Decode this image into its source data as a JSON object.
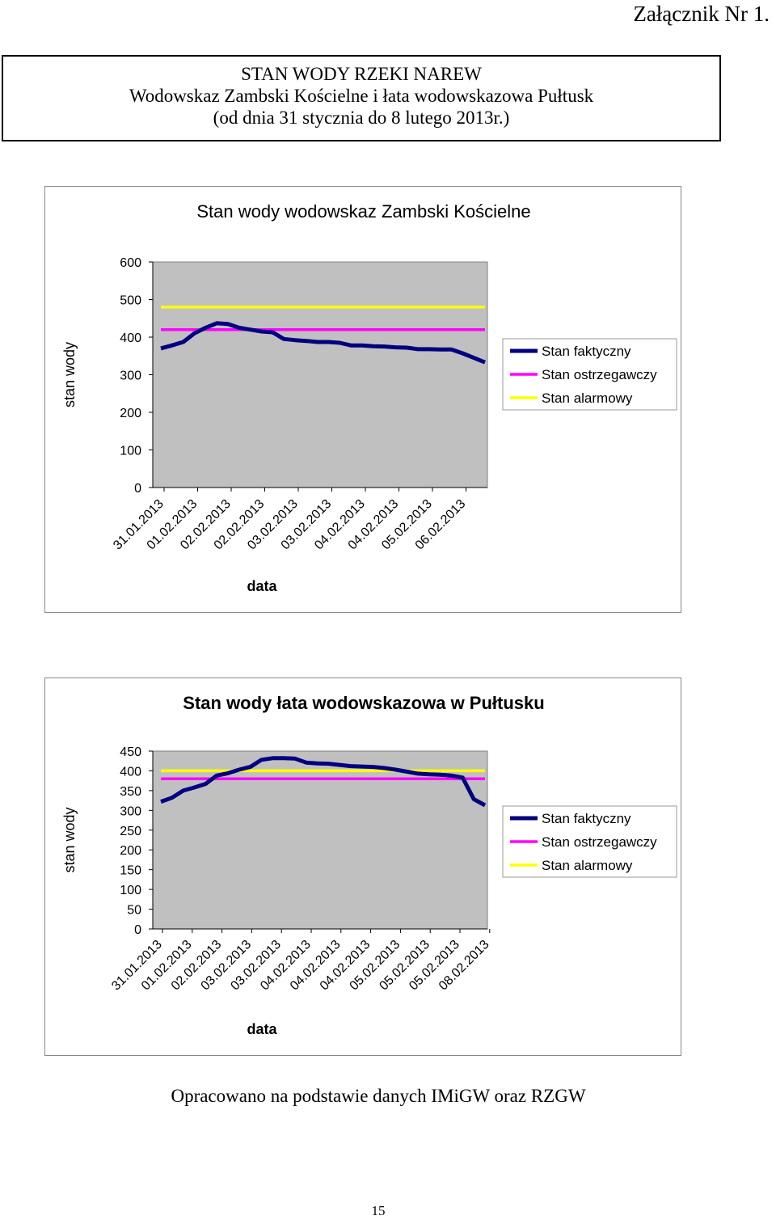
{
  "annex": "Załącznik Nr 1.",
  "header": {
    "line1": "STAN WODY RZEKI NAREW",
    "line2": "Wodowskaz Zambski Kościelne i łata wodowskazowa Pułtusk",
    "line3": "(od dnia 31 stycznia do 8 lutego 2013r.)"
  },
  "footer_note": "Opracowano na podstawie danych IMiGW oraz RZGW",
  "page_number": "15",
  "colors": {
    "plot_bg": "#c0c0c0",
    "faktyczny": "#000080",
    "ostrzegawczy": "#ff00ff",
    "alarmowy": "#ffff00"
  },
  "chart_data": [
    {
      "type": "line",
      "title": "Stan wody wodowskaz Zambski Kościelne",
      "xlabel": "data",
      "ylabel": "stan wody",
      "ylim": [
        0,
        600
      ],
      "yticks": [
        "0",
        "100",
        "200",
        "300",
        "400",
        "500",
        "600"
      ],
      "xticks": [
        "31.01.2013",
        "01.02.2013",
        "02.02.2013",
        "02.02.2013",
        "03.02.2013",
        "03.02.2013",
        "04.02.2013",
        "04.02.2013",
        "05.02.2013",
        "06.02.2013"
      ],
      "grid": false,
      "legend_position": "right",
      "series": [
        {
          "name": "Stan faktyczny",
          "values": [
            370,
            378,
            387,
            410,
            425,
            437,
            435,
            425,
            420,
            415,
            413,
            395,
            392,
            390,
            387,
            387,
            385,
            378,
            378,
            376,
            375,
            373,
            372,
            368,
            368,
            367,
            367,
            357,
            345,
            333
          ]
        },
        {
          "name": "Stan ostrzegawczy",
          "values": [
            420,
            420
          ]
        },
        {
          "name": "Stan alarmowy",
          "values": [
            480,
            480
          ]
        }
      ]
    },
    {
      "type": "line",
      "title": "Stan wody łata wodowskazowa w Pułtusku",
      "xlabel": "data",
      "ylabel": "stan wody",
      "ylim": [
        0,
        450
      ],
      "yticks": [
        "0",
        "50",
        "100",
        "150",
        "200",
        "250",
        "300",
        "350",
        "400",
        "450"
      ],
      "xticks": [
        "31.01.2013",
        "01.02.2013",
        "02.02.2013",
        "03.02.2013",
        "03.02.2013",
        "04.02.2013",
        "04.02.2013",
        "04.02.2013",
        "05.02.2013",
        "05.02.2013",
        "05.02.2013",
        "08.02.2013"
      ],
      "grid": false,
      "legend_position": "right",
      "series": [
        {
          "name": "Stan faktyczny",
          "values": [
            322,
            332,
            350,
            358,
            367,
            388,
            394,
            403,
            410,
            428,
            432,
            432,
            431,
            421,
            419,
            418,
            415,
            412,
            411,
            410,
            407,
            403,
            398,
            393,
            391,
            390,
            388,
            383,
            328,
            313
          ]
        },
        {
          "name": "Stan ostrzegawczy",
          "values": [
            380,
            380
          ]
        },
        {
          "name": "Stan alarmowy",
          "values": [
            400,
            400
          ]
        }
      ]
    }
  ]
}
